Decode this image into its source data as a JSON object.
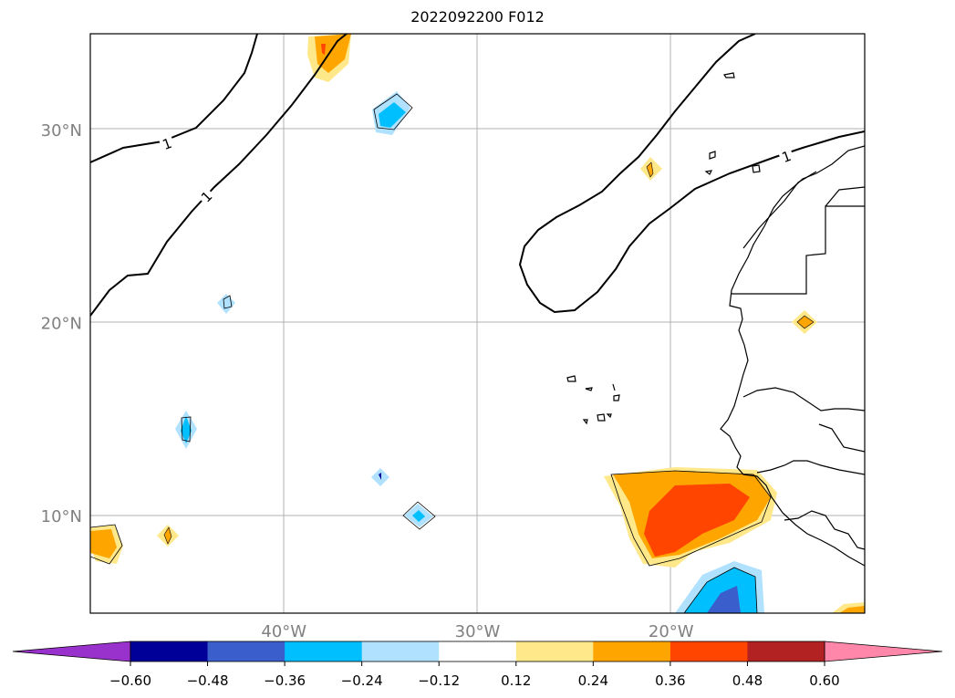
{
  "title": "2022092200 F012",
  "axes": {
    "lat_ticks": [
      {
        "label": "30°N",
        "lat": 30
      },
      {
        "label": "20°N",
        "lat": 20
      },
      {
        "label": "10°N",
        "lat": 10
      }
    ],
    "lon_ticks": [
      {
        "label": "40°W",
        "lon": -40
      },
      {
        "label": "30°W",
        "lon": -30
      },
      {
        "label": "20°W",
        "lon": -20
      }
    ],
    "tick_color": "#808080"
  },
  "contour_label": "1",
  "colorbar": {
    "ticks": [
      "−0.60",
      "−0.48",
      "−0.36",
      "−0.24",
      "−0.12",
      "0.12",
      "0.24",
      "0.36",
      "0.48",
      "0.60"
    ],
    "under_color": "#9932cc",
    "over_color": "#ff88aa",
    "colors": [
      "#000099",
      "#3a5fcd",
      "#00bfff",
      "#b0e2ff",
      "#ffffff",
      "#ffe88a",
      "#ffa500",
      "#ff4500",
      "#b22222"
    ]
  }
}
